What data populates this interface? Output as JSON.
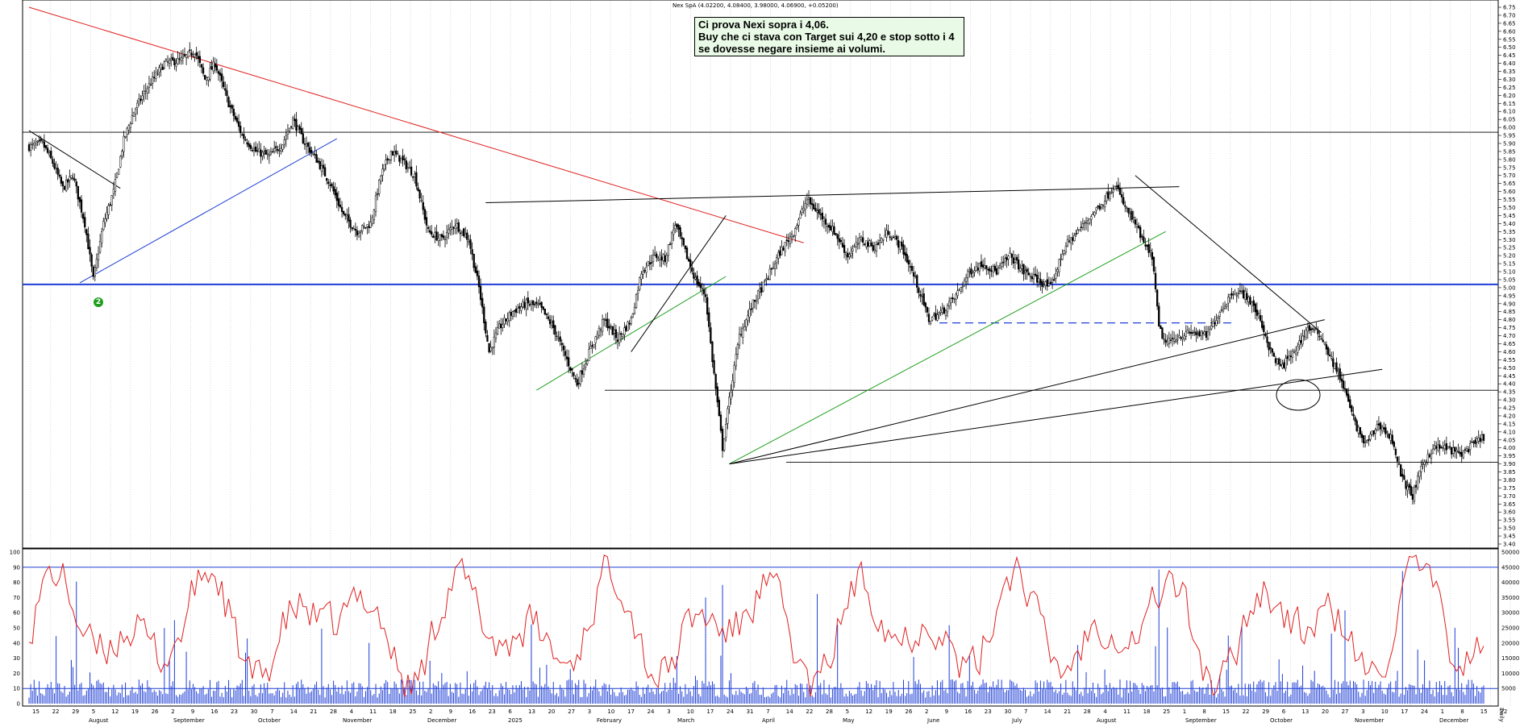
{
  "header": {
    "symbol": "Nex SpA",
    "quote": "(4.02200, 4.08400, 3.98000, 4.06900, +0.05200)"
  },
  "annotation": {
    "lines": [
      "Ci prova Nexi sopra i 4,06.",
      "Buy che ci stava con Target sui 4,20 e stop sotto i 4",
      "se dovesse negare insieme ai volumi."
    ]
  },
  "signal_badge": "2",
  "colors": {
    "candle": "#000000",
    "red_trendline": "#e02020",
    "blue_support": "#1f3fd6",
    "green_trendline": "#1fa01f",
    "oscillator": "#e02020",
    "oscillator_levels": "#1f3fd6",
    "volume": "#1f3fd6",
    "badge": "#1f9e1f"
  },
  "chart_data": {
    "type": "candlestick",
    "instrument": "Nex SpA",
    "price_axis": {
      "range": [
        3.4,
        6.75
      ],
      "ticks": [
        "6.75",
        "6.70",
        "6.65",
        "6.60",
        "6.55",
        "6.50",
        "6.45",
        "6.40",
        "6.35",
        "6.30",
        "6.25",
        "6.20",
        "6.15",
        "6.10",
        "6.05",
        "6.00",
        "5.95",
        "5.90",
        "5.85",
        "5.80",
        "5.75",
        "5.70",
        "5.65",
        "5.60",
        "5.55",
        "5.50",
        "5.45",
        "5.40",
        "5.35",
        "5.30",
        "5.25",
        "5.20",
        "5.15",
        "5.10",
        "5.05",
        "5.00",
        "4.95",
        "4.90",
        "4.85",
        "4.80",
        "4.75",
        "4.70",
        "4.65",
        "4.60",
        "4.55",
        "4.50",
        "4.45",
        "4.40",
        "4.35",
        "4.30",
        "4.25",
        "4.20",
        "4.15",
        "4.10",
        "4.05",
        "4.00",
        "3.95",
        "3.90",
        "3.85",
        "3.80",
        "3.75",
        "3.70",
        "3.65",
        "3.60",
        "3.55",
        "3.50",
        "3.45",
        "3.40"
      ],
      "position": "right"
    },
    "horizontal_levels": [
      5.97,
      5.02,
      4.36,
      3.91
    ],
    "dashed_level": 4.78,
    "price_path": [
      [
        0,
        5.88
      ],
      [
        8,
        5.9
      ],
      [
        14,
        5.78
      ],
      [
        20,
        5.62
      ],
      [
        26,
        5.7
      ],
      [
        33,
        5.4
      ],
      [
        38,
        5.05
      ],
      [
        44,
        5.4
      ],
      [
        50,
        5.6
      ],
      [
        56,
        5.92
      ],
      [
        62,
        6.1
      ],
      [
        70,
        6.25
      ],
      [
        80,
        6.4
      ],
      [
        90,
        6.42
      ],
      [
        98,
        6.48
      ],
      [
        104,
        6.3
      ],
      [
        110,
        6.4
      ],
      [
        118,
        6.15
      ],
      [
        126,
        5.95
      ],
      [
        134,
        5.85
      ],
      [
        142,
        5.82
      ],
      [
        150,
        5.9
      ],
      [
        156,
        6.05
      ],
      [
        162,
        5.92
      ],
      [
        170,
        5.8
      ],
      [
        178,
        5.65
      ],
      [
        186,
        5.45
      ],
      [
        194,
        5.35
      ],
      [
        202,
        5.4
      ],
      [
        208,
        5.7
      ],
      [
        214,
        5.85
      ],
      [
        220,
        5.8
      ],
      [
        228,
        5.7
      ],
      [
        236,
        5.35
      ],
      [
        244,
        5.3
      ],
      [
        252,
        5.4
      ],
      [
        260,
        5.3
      ],
      [
        266,
        5.0
      ],
      [
        272,
        4.6
      ],
      [
        278,
        4.75
      ],
      [
        286,
        4.85
      ],
      [
        294,
        4.9
      ],
      [
        302,
        4.88
      ],
      [
        310,
        4.75
      ],
      [
        318,
        4.55
      ],
      [
        324,
        4.4
      ],
      [
        332,
        4.62
      ],
      [
        340,
        4.8
      ],
      [
        348,
        4.68
      ],
      [
        356,
        4.8
      ],
      [
        362,
        5.1
      ],
      [
        370,
        5.2
      ],
      [
        376,
        5.18
      ],
      [
        382,
        5.4
      ],
      [
        388,
        5.22
      ],
      [
        394,
        5.05
      ],
      [
        400,
        4.95
      ],
      [
        404,
        4.55
      ],
      [
        410,
        4.0
      ],
      [
        414,
        4.3
      ],
      [
        420,
        4.7
      ],
      [
        428,
        4.9
      ],
      [
        436,
        5.05
      ],
      [
        444,
        5.22
      ],
      [
        452,
        5.35
      ],
      [
        460,
        5.55
      ],
      [
        468,
        5.45
      ],
      [
        476,
        5.35
      ],
      [
        484,
        5.2
      ],
      [
        492,
        5.3
      ],
      [
        500,
        5.25
      ],
      [
        508,
        5.35
      ],
      [
        516,
        5.25
      ],
      [
        524,
        5.05
      ],
      [
        532,
        4.8
      ],
      [
        540,
        4.85
      ],
      [
        548,
        4.95
      ],
      [
        556,
        5.1
      ],
      [
        564,
        5.15
      ],
      [
        572,
        5.1
      ],
      [
        580,
        5.2
      ],
      [
        588,
        5.1
      ],
      [
        596,
        5.05
      ],
      [
        604,
        5.0
      ],
      [
        612,
        5.25
      ],
      [
        620,
        5.35
      ],
      [
        628,
        5.45
      ],
      [
        636,
        5.55
      ],
      [
        642,
        5.65
      ],
      [
        648,
        5.5
      ],
      [
        654,
        5.4
      ],
      [
        660,
        5.25
      ],
      [
        664,
        5.2
      ],
      [
        668,
        4.75
      ],
      [
        672,
        4.65
      ],
      [
        680,
        4.7
      ],
      [
        688,
        4.72
      ],
      [
        696,
        4.7
      ],
      [
        704,
        4.85
      ],
      [
        712,
        4.98
      ],
      [
        720,
        4.95
      ],
      [
        728,
        4.8
      ],
      [
        734,
        4.6
      ],
      [
        740,
        4.5
      ],
      [
        748,
        4.6
      ],
      [
        756,
        4.75
      ],
      [
        764,
        4.7
      ],
      [
        770,
        4.55
      ],
      [
        776,
        4.42
      ],
      [
        784,
        4.15
      ],
      [
        790,
        4.02
      ],
      [
        798,
        4.15
      ],
      [
        806,
        4.05
      ],
      [
        812,
        3.8
      ],
      [
        818,
        3.7
      ],
      [
        824,
        3.9
      ],
      [
        830,
        4.0
      ],
      [
        838,
        4.0
      ],
      [
        846,
        3.96
      ],
      [
        854,
        4.02
      ],
      [
        860,
        4.07
      ]
    ],
    "trendlines": [
      {
        "color": "red",
        "from": [
          0,
          6.75
        ],
        "to": [
          458,
          5.28
        ]
      },
      {
        "color": "blue",
        "from": [
          30,
          5.03
        ],
        "to": [
          182,
          5.93
        ]
      },
      {
        "color": "green",
        "from": [
          300,
          4.36
        ],
        "to": [
          412,
          5.07
        ]
      },
      {
        "color": "green",
        "from": [
          414,
          3.9
        ],
        "to": [
          672,
          5.35
        ]
      },
      {
        "color": "black",
        "from": [
          414,
          3.9
        ],
        "to": [
          766,
          4.8
        ]
      },
      {
        "color": "black",
        "from": [
          414,
          3.9
        ],
        "to": [
          800,
          4.49
        ]
      },
      {
        "color": "black",
        "from": [
          270,
          5.53
        ],
        "to": [
          680,
          5.63
        ]
      },
      {
        "color": "black",
        "from": [
          654,
          5.7
        ],
        "to": [
          764,
          4.72
        ]
      },
      {
        "color": "black",
        "from": [
          0,
          5.98
        ],
        "to": [
          54,
          5.62
        ]
      },
      {
        "color": "black",
        "from": [
          356,
          4.6
        ],
        "to": [
          412,
          5.45
        ]
      }
    ],
    "oscillator": {
      "range": [
        0,
        100
      ],
      "ticks": [
        "100",
        "90",
        "80",
        "70",
        "60",
        "50",
        "40",
        "30",
        "20",
        "10",
        "0"
      ],
      "upper_level": 90,
      "lower_level": 10
    },
    "volume": {
      "range": [
        0,
        50000
      ],
      "ticks": [
        "50000",
        "45000",
        "40000",
        "35000",
        "30000",
        "25000",
        "20000",
        "15000",
        "10000",
        "5000"
      ]
    },
    "x_axis": {
      "day_labels": [
        "15",
        "22",
        "29",
        "5",
        "12",
        "19",
        "26",
        "2",
        "9",
        "16",
        "23",
        "30",
        "7",
        "14",
        "21",
        "28",
        "4",
        "11",
        "18",
        "25",
        "2",
        "9",
        "16",
        "23",
        "6",
        "13",
        "20",
        "27",
        "3",
        "10",
        "17",
        "24",
        "3",
        "10",
        "17",
        "24",
        "31",
        "7",
        "14",
        "22",
        "28",
        "5",
        "12",
        "19",
        "26",
        "2",
        "9",
        "16",
        "23",
        "30",
        "7",
        "14",
        "21",
        "28",
        "4",
        "11",
        "18",
        "25",
        "1",
        "8",
        "15",
        "22",
        "29",
        "6",
        "13",
        "20",
        "27",
        "3",
        "10",
        "17",
        "24",
        "1",
        "8",
        "15",
        "22"
      ],
      "month_labels": [
        "August",
        "September",
        "October",
        "November",
        "December",
        "2025",
        "February",
        "March",
        "April",
        "May",
        "June",
        "July",
        "August",
        "September",
        "October",
        "November",
        "December"
      ],
      "unit": "Daily"
    }
  }
}
